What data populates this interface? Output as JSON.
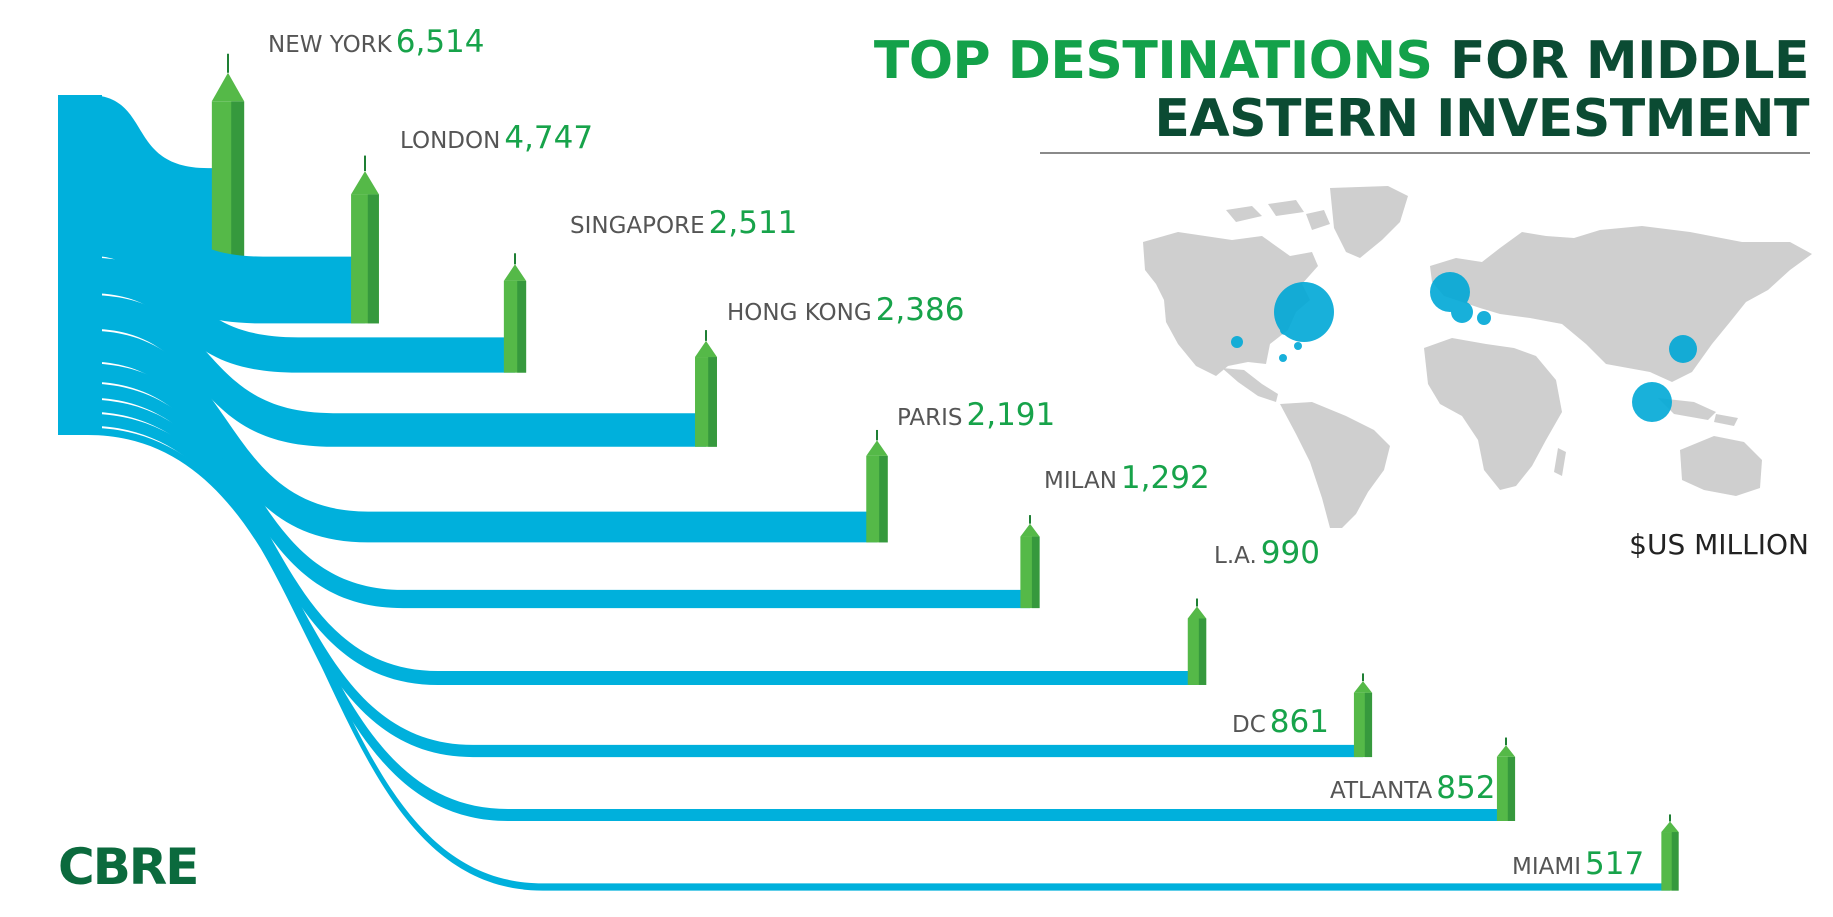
{
  "title": {
    "part1": "TOP DESTINATIONS",
    "part2a": "FOR MIDDLE",
    "part2b": "EASTERN INVESTMENT"
  },
  "unit_label": "$US MILLION",
  "logo_text": "CBRE",
  "colors": {
    "flow": "#00b0dc",
    "building": "#55b948",
    "building_dark": "#1e7f34",
    "value": "#17a34a",
    "title_green": "#13a14a",
    "title_dark": "#0b4b33",
    "map": "#cfcfcf",
    "bubble": "#00a8d6"
  },
  "chart_data": {
    "type": "bar",
    "categories": [
      "NEW YORK",
      "LONDON",
      "SINGAPORE",
      "HONG KONG",
      "PARIS",
      "MILAN",
      "L.A.",
      "DC",
      "ATLANTA",
      "MIAMI"
    ],
    "values": [
      6514,
      4747,
      2511,
      2386,
      2191,
      1292,
      990,
      861,
      852,
      517
    ],
    "value_labels": [
      "6,514",
      "4,747",
      "2,511",
      "2,386",
      "2,191",
      "1,292",
      "990",
      "861",
      "852",
      "517"
    ],
    "icons": [
      "empire-state-building-icon",
      "big-ben-icon",
      "marina-bay-sands-icon",
      "bank-of-china-tower-icon",
      "eiffel-tower-icon",
      "pirelli-tower-icon",
      "us-bank-tower-icon",
      "washington-monument-icon",
      "bank-of-america-plaza-icon",
      "freedom-tower-icon"
    ],
    "title": "TOP DESTINATIONS FOR MIDDLE EASTERN INVESTMENT",
    "ylabel": "$US MILLION"
  }
}
